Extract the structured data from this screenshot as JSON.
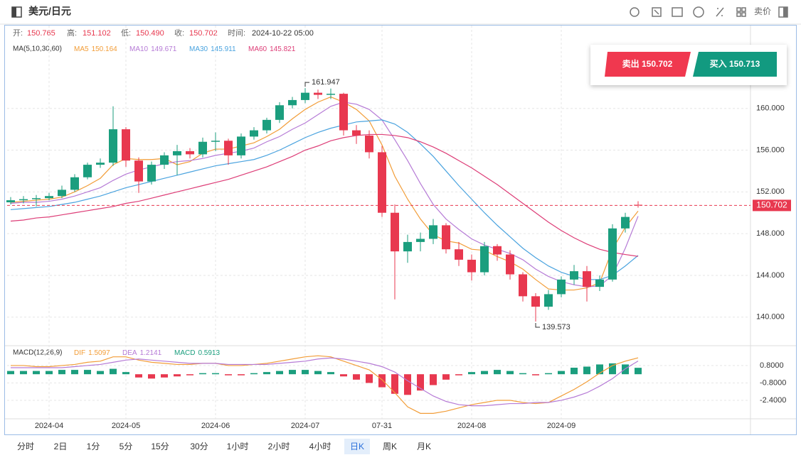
{
  "header": {
    "title": "美元/日元",
    "price_mode": "卖价"
  },
  "info": [
    {
      "label": "开:",
      "value": "150.765"
    },
    {
      "label": "高:",
      "value": "151.102"
    },
    {
      "label": "低:",
      "value": "150.490"
    },
    {
      "label": "收:",
      "value": "150.702"
    },
    {
      "label": "时间:",
      "value": "2024-10-22 05:00"
    }
  ],
  "trade": {
    "sell": "卖出 150.702",
    "buy": "买入 150.713"
  },
  "timeframes": [
    "分时",
    "2日",
    "1分",
    "5分",
    "15分",
    "30分",
    "1小时",
    "2小时",
    "4小时",
    "日K",
    "周K",
    "月K"
  ],
  "selected_timeframe": "日K",
  "chart_data": {
    "type": "candlestick",
    "categories": [
      null,
      null,
      null,
      "2024-04",
      null,
      null,
      null,
      null,
      null,
      "2024-05",
      null,
      null,
      null,
      null,
      null,
      null,
      "2024-06",
      null,
      null,
      null,
      null,
      null,
      null,
      "2024-07",
      null,
      null,
      null,
      null,
      null,
      "07-31",
      null,
      null,
      null,
      null,
      null,
      null,
      "2024-08",
      null,
      null,
      null,
      null,
      null,
      null,
      "2024-09",
      null,
      null,
      null,
      null,
      null,
      null
    ],
    "open": [
      151.0,
      151.2,
      151.3,
      151.4,
      151.6,
      152.2,
      153.4,
      154.6,
      154.8,
      158.0,
      155.0,
      153.0,
      154.6,
      155.5,
      155.9,
      155.6,
      156.8,
      156.9,
      155.5,
      157.3,
      157.9,
      158.9,
      160.3,
      160.8,
      161.5,
      161.3,
      161.4,
      157.9,
      157.4,
      155.8,
      150.0,
      146.3,
      147.2,
      147.5,
      148.8,
      146.5,
      145.5,
      144.3,
      146.8,
      146.0,
      144.1,
      142.0,
      141.0,
      142.2,
      143.6,
      144.4,
      142.9,
      143.6,
      148.5,
      150.765
    ],
    "high": [
      151.5,
      151.6,
      151.7,
      151.9,
      152.6,
      153.7,
      154.8,
      155.2,
      160.2,
      158.2,
      155.3,
      154.9,
      155.8,
      156.5,
      156.2,
      157.2,
      157.7,
      157.1,
      157.6,
      158.2,
      159.1,
      160.6,
      161.1,
      161.947,
      161.8,
      161.9,
      161.5,
      158.4,
      157.9,
      156.4,
      150.8,
      147.9,
      148.1,
      149.4,
      149.0,
      147.2,
      146.0,
      147.2,
      147.0,
      146.4,
      144.3,
      142.3,
      142.6,
      143.9,
      145.0,
      144.9,
      144.0,
      148.9,
      150.0,
      151.102
    ],
    "low": [
      150.8,
      150.9,
      150.6,
      151.2,
      151.4,
      152.0,
      153.2,
      154.3,
      154.5,
      154.4,
      151.9,
      152.7,
      154.2,
      153.6,
      155.2,
      155.3,
      155.9,
      154.6,
      155.2,
      157.0,
      157.6,
      158.6,
      160.0,
      160.5,
      160.9,
      160.9,
      157.4,
      156.6,
      155.2,
      149.6,
      141.7,
      145.2,
      146.3,
      147.0,
      146.1,
      144.9,
      143.5,
      144.0,
      145.4,
      143.6,
      141.5,
      139.573,
      140.7,
      141.9,
      143.1,
      141.5,
      142.5,
      143.4,
      148.1,
      150.49
    ],
    "close": [
      151.2,
      151.3,
      151.4,
      151.6,
      152.2,
      153.4,
      154.6,
      154.8,
      158.0,
      155.0,
      153.0,
      154.6,
      155.5,
      155.9,
      155.6,
      156.8,
      156.9,
      155.5,
      157.3,
      157.9,
      158.9,
      160.3,
      160.8,
      161.5,
      161.3,
      161.4,
      157.9,
      157.4,
      155.8,
      150.0,
      146.3,
      147.2,
      147.5,
      148.8,
      146.5,
      145.5,
      144.3,
      146.8,
      146.0,
      144.1,
      142.0,
      141.0,
      142.2,
      143.6,
      144.4,
      142.9,
      143.6,
      148.5,
      149.6,
      150.702
    ],
    "up_color": "#1b9e7e",
    "down_color": "#e8384f",
    "ylim": [
      137.4,
      164.4
    ],
    "yticks": [
      {
        "value": 160,
        "label": "160.000"
      },
      {
        "value": 156,
        "label": "156.000"
      },
      {
        "value": 152,
        "label": "152.000"
      },
      {
        "value": 148,
        "label": "148.000"
      },
      {
        "value": 144,
        "label": "144.000"
      },
      {
        "value": 140,
        "label": "140.000"
      }
    ],
    "grid": true,
    "max_label": 161.947,
    "min_label": 139.573,
    "last_price": {
      "value": 150.702,
      "label": "150.702",
      "color": "#e8384f"
    },
    "ma_title": "MA(5,10,30,60)",
    "ma_series": [
      {
        "name": "MA5",
        "legend_value": "150.164",
        "color": "#f29d38",
        "values": [
          151.0,
          151.1,
          151.2,
          151.3,
          151.5,
          152.0,
          152.6,
          153.3,
          154.6,
          155.2,
          155.1,
          155.1,
          155.2,
          154.6,
          154.9,
          155.7,
          156.1,
          156.1,
          156.4,
          156.7,
          157.3,
          158.0,
          159.0,
          159.9,
          160.6,
          161.1,
          160.6,
          159.9,
          158.8,
          156.5,
          153.5,
          151.3,
          149.4,
          147.9,
          147.3,
          147.1,
          146.5,
          146.4,
          145.8,
          145.3,
          144.6,
          143.6,
          142.7,
          142.6,
          142.6,
          142.8,
          143.3,
          146.5,
          148.6,
          150.164
        ]
      },
      {
        "name": "MA10",
        "legend_value": "149.671",
        "color": "#b67bd6",
        "values": [
          150.9,
          151.0,
          151.0,
          151.1,
          151.3,
          151.6,
          152.0,
          152.4,
          153.1,
          153.7,
          154.1,
          154.4,
          154.7,
          154.9,
          155.0,
          155.2,
          155.5,
          155.7,
          155.9,
          156.2,
          156.8,
          157.3,
          158.0,
          158.6,
          159.4,
          160.2,
          160.6,
          160.4,
          159.9,
          158.9,
          157.0,
          155.0,
          152.8,
          150.8,
          149.4,
          148.4,
          147.5,
          146.9,
          146.5,
          146.1,
          145.5,
          144.6,
          143.9,
          143.4,
          143.1,
          142.9,
          143.0,
          144.0,
          146.6,
          149.671
        ]
      },
      {
        "name": "MA30",
        "legend_value": "145.911",
        "color": "#4aa3df",
        "values": [
          150.3,
          150.4,
          150.5,
          150.6,
          150.8,
          151.0,
          151.3,
          151.6,
          152.0,
          152.4,
          152.7,
          153.0,
          153.3,
          153.6,
          153.9,
          154.2,
          154.5,
          154.7,
          154.9,
          155.1,
          155.5,
          156.0,
          156.6,
          157.2,
          157.7,
          158.1,
          158.4,
          158.7,
          158.8,
          158.9,
          158.5,
          157.7,
          156.6,
          155.4,
          154.0,
          152.6,
          151.3,
          150.0,
          148.8,
          147.7,
          146.6,
          145.7,
          144.9,
          144.3,
          143.9,
          143.6,
          143.6,
          144.0,
          144.9,
          145.911
        ]
      },
      {
        "name": "MA60",
        "legend_value": "145.821",
        "color": "#dd3d77",
        "values": [
          149.2,
          149.3,
          149.5,
          149.6,
          149.8,
          150.0,
          150.2,
          150.4,
          150.6,
          150.9,
          151.1,
          151.4,
          151.7,
          152.0,
          152.3,
          152.6,
          152.9,
          153.2,
          153.6,
          154.0,
          154.4,
          154.9,
          155.4,
          156.0,
          156.4,
          156.9,
          157.2,
          157.4,
          157.5,
          157.5,
          157.4,
          157.2,
          156.8,
          156.3,
          155.7,
          155.0,
          154.3,
          153.5,
          152.7,
          151.8,
          150.9,
          150.0,
          149.1,
          148.3,
          147.6,
          147.0,
          146.5,
          146.2,
          146.0,
          145.821
        ]
      }
    ],
    "macd": {
      "title": "MACD(12,26,9)",
      "ylim": [
        -4.1,
        2.56
      ],
      "yticks": [
        {
          "value": 0.8,
          "label": "0.8000"
        },
        {
          "value": -0.8,
          "label": "-0.8000"
        },
        {
          "value": -2.4,
          "label": "-2.4000"
        }
      ],
      "dif": {
        "name": "DIF",
        "legend_value": "1.5097",
        "color": "#f29d38",
        "values": [
          0.8,
          0.8,
          0.7,
          0.7,
          0.8,
          0.9,
          1.1,
          1.2,
          1.6,
          1.6,
          1.3,
          1.1,
          1.0,
          0.9,
          0.9,
          1.0,
          1.0,
          0.8,
          0.8,
          0.9,
          1.0,
          1.2,
          1.4,
          1.6,
          1.7,
          1.6,
          1.2,
          0.8,
          0.4,
          -0.5,
          -1.7,
          -3.0,
          -3.6,
          -3.6,
          -3.4,
          -3.1,
          -2.8,
          -2.6,
          -2.4,
          -2.4,
          -2.6,
          -2.7,
          -2.6,
          -2.0,
          -1.4,
          -0.7,
          0.1,
          0.8,
          1.2,
          1.5097
        ]
      },
      "dea": {
        "name": "DEA",
        "legend_value": "1.2141",
        "color": "#b67bd6",
        "values": [
          0.6,
          0.6,
          0.6,
          0.6,
          0.6,
          0.7,
          0.8,
          0.9,
          1.1,
          1.3,
          1.4,
          1.3,
          1.2,
          1.1,
          1.0,
          1.0,
          1.0,
          0.9,
          0.9,
          0.9,
          0.9,
          1.0,
          1.1,
          1.2,
          1.4,
          1.5,
          1.4,
          1.2,
          1.0,
          0.7,
          0.2,
          -0.6,
          -1.3,
          -2.0,
          -2.5,
          -2.8,
          -2.9,
          -2.9,
          -2.8,
          -2.7,
          -2.7,
          -2.6,
          -2.6,
          -2.4,
          -2.1,
          -1.7,
          -1.1,
          -0.4,
          0.5,
          1.2141
        ]
      },
      "hist": {
        "name": "MACD",
        "legend_value": "0.5913",
        "color": "#1b9e7e",
        "negative_color": "#e8384f",
        "values": [
          0.3,
          0.3,
          0.3,
          0.3,
          0.4,
          0.4,
          0.4,
          0.3,
          0.5,
          0.2,
          -0.3,
          -0.4,
          -0.3,
          -0.2,
          -0.1,
          0.1,
          0.1,
          -0.1,
          -0.1,
          0.1,
          0.2,
          0.3,
          0.4,
          0.4,
          0.3,
          0.2,
          -0.2,
          -0.5,
          -0.8,
          -1.2,
          -1.8,
          -1.9,
          -1.5,
          -1.0,
          -0.5,
          -0.1,
          0.2,
          0.3,
          0.4,
          0.3,
          0.1,
          -0.1,
          0.1,
          0.3,
          0.6,
          0.7,
          0.9,
          1.0,
          0.9,
          0.5913
        ]
      }
    }
  }
}
